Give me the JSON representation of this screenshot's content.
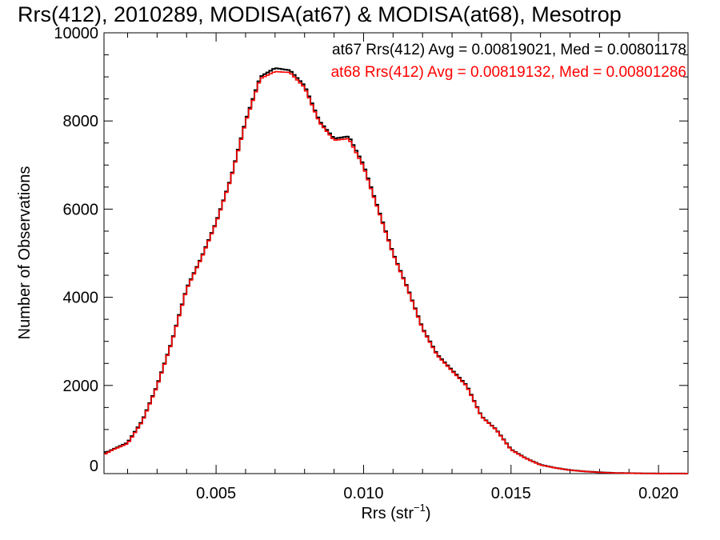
{
  "chart_data": {
    "type": "line",
    "title": "Rrs(412), 2010289, MODISA(at67) & MODISA(at68), Mesotrop",
    "xlabel_main": "Rrs (str",
    "xlabel_sup": "−1",
    "xlabel_close": ")",
    "ylabel": "Number of Observations",
    "xlim": [
      0.0012,
      0.021
    ],
    "ylim": [
      0,
      10000
    ],
    "x_ticks": [
      0.005,
      0.01,
      0.015,
      0.02
    ],
    "x_tick_labels": [
      "0.005",
      "0.010",
      "0.015",
      "0.020"
    ],
    "y_ticks": [
      0,
      2000,
      4000,
      6000,
      8000,
      10000
    ],
    "y_tick_labels": [
      "0",
      "2000",
      "4000",
      "6000",
      "8000",
      "10000"
    ],
    "grid": false,
    "legend_position": "top-right",
    "legend": [
      {
        "text": "at67 Rrs(412) Avg = 0.00819021, Med = 0.00801178",
        "color": "#000000"
      },
      {
        "text": "at68 Rrs(412) Avg = 0.00819132, Med = 0.00801286",
        "color": "#ff0000"
      }
    ],
    "series": [
      {
        "name": "at67",
        "color": "#000000",
        "x": [
          0.0012,
          0.0015,
          0.002,
          0.0025,
          0.003,
          0.0035,
          0.004,
          0.0045,
          0.005,
          0.0055,
          0.006,
          0.0065,
          0.007,
          0.0075,
          0.008,
          0.0085,
          0.009,
          0.0095,
          0.01,
          0.0105,
          0.011,
          0.0115,
          0.012,
          0.0125,
          0.013,
          0.0135,
          0.014,
          0.0145,
          0.015,
          0.0155,
          0.016,
          0.0165,
          0.017,
          0.0175,
          0.018,
          0.0185,
          0.019,
          0.0195,
          0.02,
          0.0205,
          0.021
        ],
        "y": [
          450,
          550,
          700,
          1200,
          2000,
          3000,
          4200,
          4900,
          5700,
          6700,
          8000,
          9000,
          9200,
          9150,
          8800,
          8000,
          7600,
          7650,
          7000,
          6000,
          5000,
          4200,
          3300,
          2700,
          2350,
          2000,
          1300,
          1000,
          550,
          350,
          200,
          130,
          80,
          50,
          30,
          15,
          10,
          5,
          3,
          2,
          1
        ]
      },
      {
        "name": "at68",
        "color": "#ff0000",
        "x": [
          0.0012,
          0.0015,
          0.002,
          0.0025,
          0.003,
          0.0035,
          0.004,
          0.0045,
          0.005,
          0.0055,
          0.006,
          0.0065,
          0.007,
          0.0075,
          0.008,
          0.0085,
          0.009,
          0.0095,
          0.01,
          0.0105,
          0.011,
          0.0115,
          0.012,
          0.0125,
          0.013,
          0.0135,
          0.014,
          0.0145,
          0.015,
          0.0155,
          0.016,
          0.0165,
          0.017,
          0.0175,
          0.018,
          0.0185,
          0.019,
          0.0195,
          0.02,
          0.0205,
          0.021
        ],
        "y": [
          430,
          540,
          680,
          1180,
          1980,
          2980,
          4180,
          4880,
          5680,
          6680,
          7970,
          8960,
          9120,
          9100,
          8760,
          7970,
          7560,
          7600,
          6960,
          5970,
          4980,
          4180,
          3280,
          2680,
          2330,
          1980,
          1290,
          990,
          540,
          345,
          195,
          128,
          78,
          48,
          28,
          14,
          9,
          5,
          3,
          2,
          1
        ]
      }
    ]
  }
}
